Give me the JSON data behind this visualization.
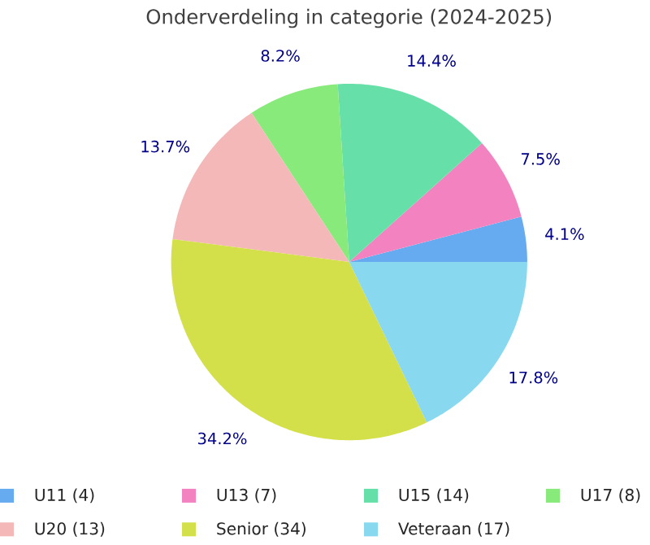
{
  "chart_data": {
    "type": "pie",
    "title": "Onderverdeling in categorie (2024-2025)",
    "categories": [
      "U11 (4)",
      "U13 (7)",
      "U15 (14)",
      "U17 (8)",
      "U20 (13)",
      "Senior (34)",
      "Veteraan (17)"
    ],
    "values": [
      4.1,
      7.5,
      14.4,
      8.2,
      13.7,
      34.2,
      17.8
    ],
    "colors": [
      "#66aaf0",
      "#f283c0",
      "#66e0a8",
      "#88ea7a",
      "#f5b8b8",
      "#d4e04a",
      "#88d8f0"
    ],
    "value_labels": [
      "4.1%",
      "7.5%",
      "14.4%",
      "8.2%",
      "13.7%",
      "34.2%",
      "17.8%"
    ],
    "legend": "bottom"
  }
}
